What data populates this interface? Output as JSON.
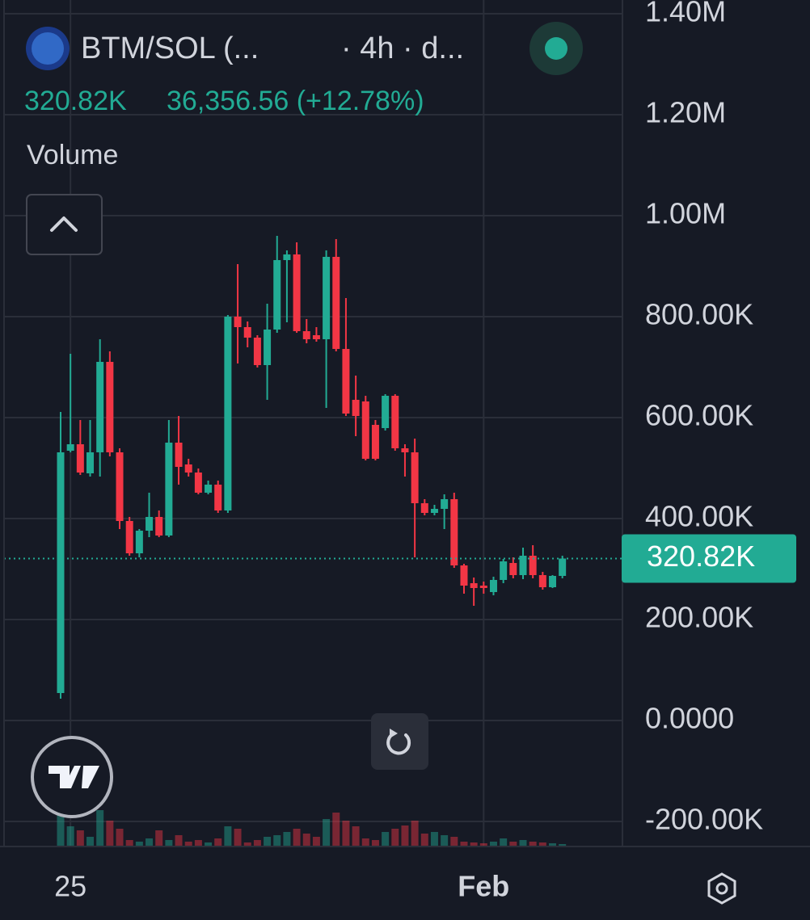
{
  "header": {
    "symbol": "BTM/SOL (...",
    "interval": "· 4h · d...",
    "price": "320.82K",
    "change": "36,356.56 (+12.78%)",
    "indicator": "Volume"
  },
  "chart_data": {
    "type": "candlestick",
    "categories": [
      null,
      "25",
      null,
      null,
      null,
      null,
      null,
      null,
      null,
      null,
      null,
      null,
      null,
      null,
      null,
      null,
      null,
      null,
      null,
      null,
      null,
      null,
      null,
      null,
      null,
      null,
      null,
      null,
      null,
      null,
      null,
      null,
      null,
      null,
      null,
      null,
      null,
      null,
      null,
      null,
      null,
      null,
      null,
      "Feb",
      null,
      null,
      null,
      null,
      null,
      null,
      null,
      null
    ],
    "open": [
      54400,
      534400,
      547200,
      489600,
      531200,
      710400,
      531200,
      395200,
      331200,
      376000,
      403200,
      366400,
      550400,
      507200,
      491200,
      451200,
      467200,
      416000,
      800000,
      779200,
      758400,
      704000,
      774400,
      912000,
      923200,
      771200,
      763200,
      755200,
      918400,
      736000,
      635200,
      632000,
      585600,
      579200,
      643200,
      539200,
      531200,
      430400,
      411200,
      419200,
      438400,
      307200,
      272000,
      267200,
      254400,
      278400,
      312000,
      288000,
      326400,
      288000,
      264000,
      286400
    ],
    "high": [
      611200,
      726400,
      595200,
      595200,
      755200,
      731200,
      539200,
      403200,
      379200,
      451200,
      416000,
      595200,
      603200,
      518400,
      499200,
      475200,
      475200,
      803200,
      904000,
      790400,
      763200,
      825600,
      960000,
      931200,
      947200,
      795200,
      779200,
      931200,
      953600,
      836800,
      683200,
      643200,
      595200,
      646400,
      646400,
      547200,
      558400,
      438400,
      427200,
      448000,
      451200,
      310400,
      283200,
      275200,
      284800,
      320000,
      323200,
      342400,
      347200,
      294400,
      288000,
      326400
    ],
    "low": [
      43200,
      531200,
      486400,
      483200,
      483200,
      523200,
      379200,
      326400,
      323200,
      363200,
      363200,
      363200,
      467200,
      483200,
      448000,
      448000,
      411200,
      411200,
      707200,
      739200,
      699200,
      635200,
      768000,
      788800,
      768000,
      747200,
      750400,
      619200,
      731200,
      603200,
      563200,
      515200,
      515200,
      574400,
      534400,
      483200,
      323200,
      406400,
      406400,
      379200,
      302400,
      251200,
      227200,
      251200,
      248000,
      272000,
      281600,
      280000,
      281600,
      259200,
      262400,
      281600
    ],
    "close": [
      531200,
      547200,
      491200,
      531200,
      710400,
      531200,
      395200,
      331200,
      376000,
      403200,
      366400,
      550400,
      502400,
      491200,
      451200,
      467200,
      416000,
      800000,
      779200,
      758400,
      704000,
      774400,
      912000,
      923200,
      771200,
      755200,
      755200,
      918400,
      736000,
      608000,
      603200,
      518400,
      518400,
      643200,
      539200,
      531200,
      430400,
      411200,
      419200,
      438400,
      307200,
      267200,
      262400,
      262400,
      278400,
      315200,
      288000,
      326400,
      288000,
      264000,
      286400,
      320820
    ],
    "volume": [
      40,
      25,
      20,
      12,
      45,
      32,
      22,
      8,
      6,
      10,
      20,
      8,
      14,
      6,
      8,
      5,
      10,
      25,
      22,
      5,
      8,
      12,
      14,
      18,
      22,
      16,
      12,
      34,
      42,
      32,
      25,
      10,
      8,
      18,
      22,
      26,
      32,
      16,
      18,
      14,
      12,
      6,
      5,
      4,
      6,
      10,
      6,
      8,
      6,
      5,
      4,
      3
    ],
    "up_color": "#22ab94",
    "down_color": "#f23645",
    "ylim": [
      -249600,
      1427200
    ],
    "yticks": [
      {
        "value": 1400000,
        "label": "1.40M"
      },
      {
        "value": 1200000,
        "label": "1.20M"
      },
      {
        "value": 1000000,
        "label": "1.00M"
      },
      {
        "value": 800000,
        "label": "800.00K"
      },
      {
        "value": 600000,
        "label": "600.00K"
      },
      {
        "value": 400000,
        "label": "400.00K"
      },
      {
        "value": 200000,
        "label": "200.00K"
      },
      {
        "value": 0,
        "label": "0.0000"
      },
      {
        "value": -200000,
        "label": "-200.00K"
      }
    ],
    "last_price": {
      "value": 320820,
      "label": "320.82K"
    },
    "grid": true
  }
}
